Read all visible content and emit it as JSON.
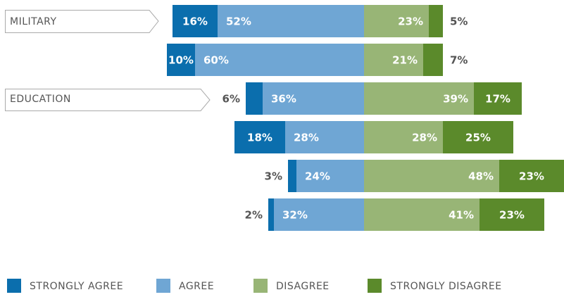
{
  "chart_data": {
    "type": "diverging-bar",
    "categories": [
      "MILITARY",
      null,
      "EDUCATION",
      null,
      null,
      null
    ],
    "series": [
      {
        "name": "STRONGLY AGREE",
        "color": "#0b6ead",
        "side": "left",
        "values": [
          16,
          10,
          6,
          18,
          3,
          2
        ],
        "value_labels": [
          "16%",
          "10%",
          "6%",
          "18%",
          "3%",
          "2%"
        ]
      },
      {
        "name": "AGREE",
        "color": "#6fa6d4",
        "side": "left",
        "values": [
          52,
          60,
          36,
          28,
          24,
          32
        ],
        "value_labels": [
          "52%",
          "60%",
          "36%",
          "28%",
          "24%",
          "32%"
        ]
      },
      {
        "name": "DISAGREE",
        "color": "#98b576",
        "side": "right",
        "values": [
          23,
          21,
          39,
          28,
          48,
          41
        ],
        "value_labels": [
          "23%",
          "21%",
          "39%",
          "28%",
          "48%",
          "41%"
        ]
      },
      {
        "name": "STRONGLY DISAGREE",
        "color": "#5b8a2b",
        "side": "right",
        "values": [
          5,
          7,
          17,
          25,
          23,
          23
        ],
        "value_labels": [
          "5%",
          "7%",
          "17%",
          "25%",
          "23%",
          "23%"
        ]
      }
    ]
  }
}
